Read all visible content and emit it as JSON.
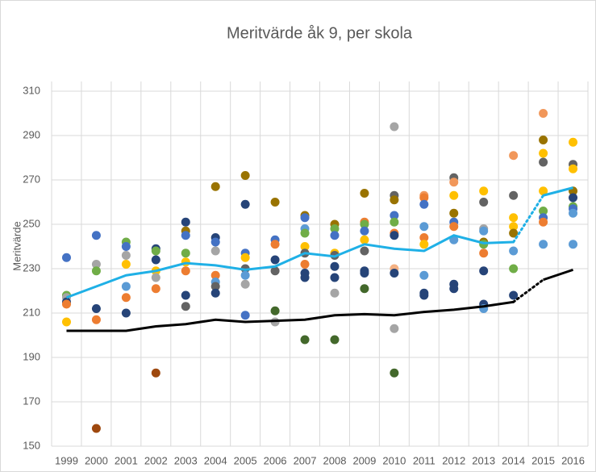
{
  "chart_data": {
    "type": "line-scatter",
    "title": "Meritvärde åk 9, per skola",
    "y_label": "Meritvärde",
    "categories": [
      "1999",
      "2000",
      "2001",
      "2002",
      "2003",
      "2004",
      "2005",
      "2006",
      "2007",
      "2008",
      "2009",
      "2010",
      "2011",
      "2012",
      "2013",
      "2014",
      "2015",
      "2016"
    ],
    "ylim": [
      150,
      310
    ],
    "yticks": [
      150,
      170,
      190,
      210,
      230,
      250,
      270,
      290,
      310
    ],
    "grid": true,
    "dashed_segment": [
      "2014",
      "2015"
    ],
    "series": [
      {
        "color": "#1fb0e6",
        "values": [
          217,
          222,
          227,
          229,
          232.5,
          231.5,
          229.5,
          231,
          237,
          235.5,
          241,
          239,
          238,
          245,
          241.5,
          242,
          263,
          266.5
        ]
      },
      {
        "color": "#000000",
        "values": [
          202,
          202,
          202,
          204,
          205,
          207,
          206,
          206.5,
          207,
          209,
          209.5,
          209,
          210.5,
          211.5,
          213,
          215,
          225,
          229.5
        ]
      }
    ],
    "scatter_values": [
      [
        235,
        218,
        217,
        215,
        214,
        206
      ],
      [
        245,
        232,
        229,
        212,
        207,
        158
      ],
      [
        242,
        240,
        236,
        232,
        222,
        217,
        210
      ],
      [
        239,
        238,
        234,
        229,
        226,
        221,
        183
      ],
      [
        251,
        247,
        245,
        237,
        233,
        229,
        218,
        213
      ],
      [
        267,
        244,
        242,
        238,
        227,
        224,
        222,
        219
      ],
      [
        272,
        259,
        237,
        235,
        230,
        227,
        223,
        209
      ],
      [
        260,
        243,
        241,
        234,
        229,
        211,
        206
      ],
      [
        254,
        253,
        248,
        246,
        240,
        237,
        232,
        228,
        226,
        198
      ],
      [
        250,
        248,
        245,
        237,
        236,
        231,
        226,
        219,
        198
      ],
      [
        264,
        251,
        250,
        247,
        243,
        238,
        229,
        228,
        221
      ],
      [
        294,
        263,
        261,
        254,
        251,
        246,
        245,
        230,
        228,
        203,
        183
      ],
      [
        263,
        262,
        259,
        249,
        244,
        241,
        227,
        219,
        218
      ],
      [
        271,
        269,
        263,
        255,
        251,
        249,
        243,
        223,
        221
      ],
      [
        265,
        260,
        248,
        247,
        242,
        241,
        237,
        229,
        214,
        212
      ],
      [
        281,
        263,
        253,
        249,
        246,
        238,
        230,
        218
      ],
      [
        300,
        288,
        282,
        278,
        265,
        256,
        253,
        251,
        241
      ],
      [
        287,
        277,
        275,
        265,
        262,
        258,
        257,
        255,
        241
      ]
    ],
    "scatter_colors": [
      [
        "#4472c4",
        "#70ad47",
        "#a5a5a5",
        "#264478",
        "#ed7d31",
        "#ffc000"
      ],
      [
        "#4472c4",
        "#a5a5a5",
        "#70ad47",
        "#264478",
        "#ed7d31",
        "#9e480e"
      ],
      [
        "#70ad47",
        "#4472c4",
        "#a5a5a5",
        "#ffc000",
        "#5b9bd5",
        "#ed7d31",
        "#264478"
      ],
      [
        "#264478",
        "#70ad47",
        "#264478",
        "#ffc000",
        "#a5a5a5",
        "#ed7d31",
        "#9e480e"
      ],
      [
        "#264478",
        "#997300",
        "#4472c4",
        "#70ad47",
        "#ffc000",
        "#ed7d31",
        "#264478",
        "#636363"
      ],
      [
        "#997300",
        "#264478",
        "#4472c4",
        "#a5a5a5",
        "#ed7d31",
        "#5b9bd5",
        "#636363",
        "#264478"
      ],
      [
        "#997300",
        "#264478",
        "#4472c4",
        "#ffc000",
        "#636363",
        "#5b9bd5",
        "#a5a5a5",
        "#4472c4"
      ],
      [
        "#997300",
        "#4472c4",
        "#ed7d31",
        "#264478",
        "#636363",
        "#43682b",
        "#a5a5a5"
      ],
      [
        "#997300",
        "#4472c4",
        "#5b9bd5",
        "#70ad47",
        "#ffc000",
        "#636363",
        "#ed7d31",
        "#264478",
        "#264478",
        "#43682b"
      ],
      [
        "#997300",
        "#70ad47",
        "#4472c4",
        "#ffc000",
        "#636363",
        "#264478",
        "#264478",
        "#a5a5a5",
        "#43682b"
      ],
      [
        "#997300",
        "#ed7d31",
        "#70ad47",
        "#4472c4",
        "#ffc000",
        "#636363",
        "#264478",
        "#264478",
        "#43682b"
      ],
      [
        "#a5a5a5",
        "#636363",
        "#997300",
        "#4472c4",
        "#70ad47",
        "#ed7d31",
        "#264478",
        "#f4b183",
        "#264478",
        "#a5a5a5",
        "#43682b"
      ],
      [
        "#f1975a",
        "#ed7d31",
        "#4472c4",
        "#5b9bd5",
        "#ed7d31",
        "#ffc000",
        "#5b9bd5",
        "#264478",
        "#264478"
      ],
      [
        "#636363",
        "#f1975a",
        "#ffc000",
        "#997300",
        "#4472c4",
        "#ed7d31",
        "#5b9bd5",
        "#264478",
        "#264478"
      ],
      [
        "#ffc000",
        "#636363",
        "#a5a5a5",
        "#5b9bd5",
        "#997300",
        "#70ad47",
        "#ed7d31",
        "#264478",
        "#264478",
        "#5b9bd5"
      ],
      [
        "#f1975a",
        "#636363",
        "#ffc000",
        "#ffc000",
        "#997300",
        "#5b9bd5",
        "#70ad47",
        "#264478"
      ],
      [
        "#f1975a",
        "#997300",
        "#ffc000",
        "#636363",
        "#ffc000",
        "#70ad47",
        "#4472c4",
        "#ed7d31",
        "#5b9bd5"
      ],
      [
        "#ffc000",
        "#636363",
        "#ffc000",
        "#997300",
        "#264478",
        "#70ad47",
        "#4472c4",
        "#5b9bd5",
        "#5b9bd5"
      ]
    ]
  }
}
